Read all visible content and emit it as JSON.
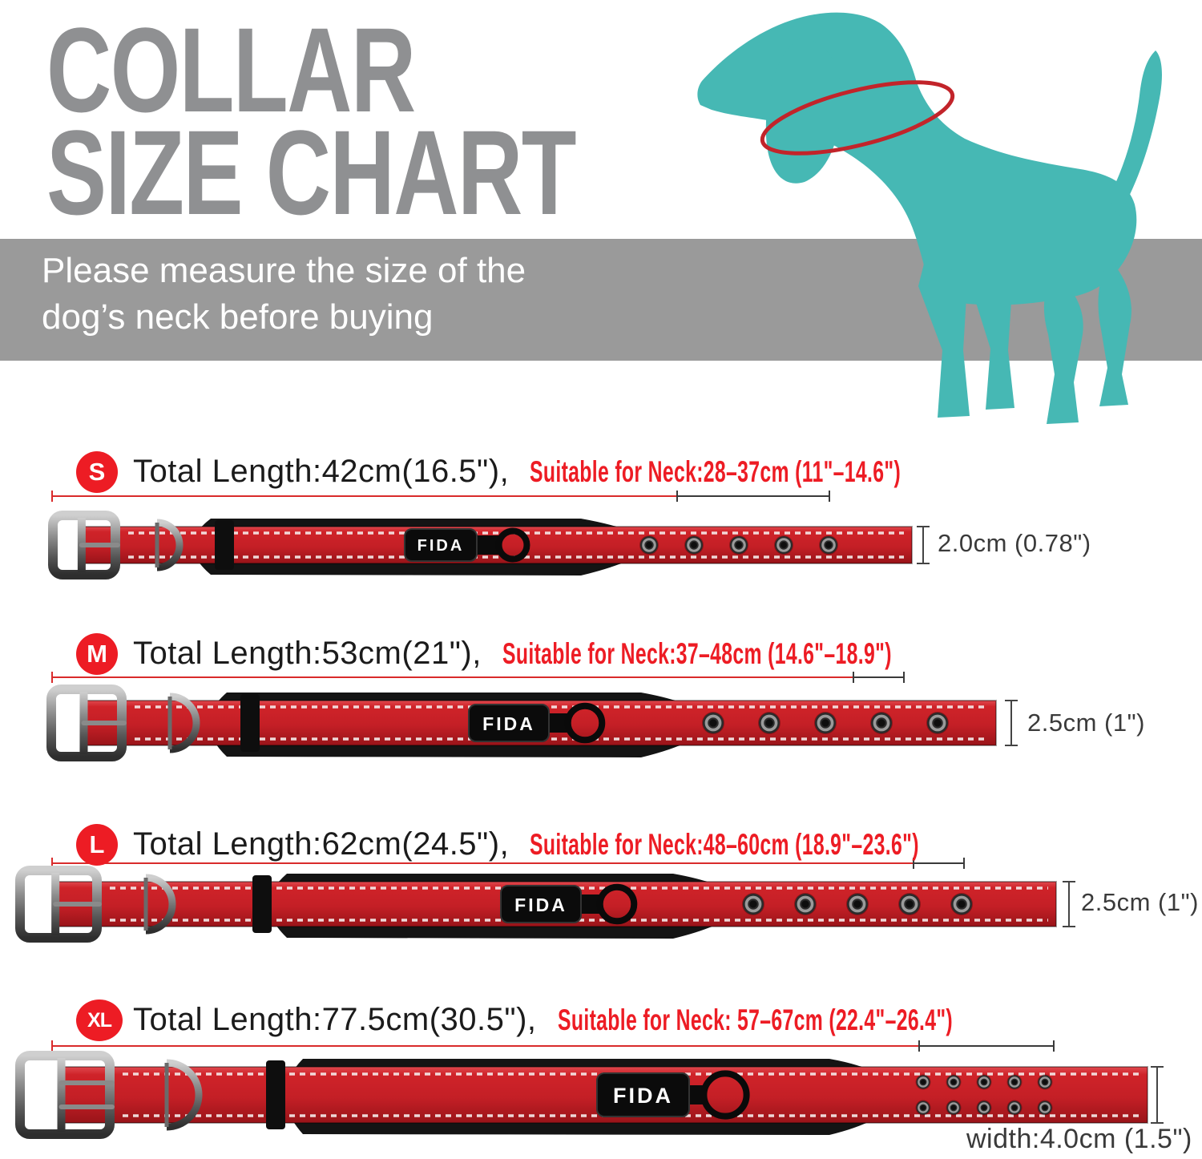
{
  "title": {
    "line1": "COLLAR",
    "line2": "SIZE CHART"
  },
  "banner": {
    "line1": "Please measure the size of the",
    "line2": "dog’s neck before buying"
  },
  "brand_label": "FIDA",
  "colors": {
    "accent_red": "#ed1c24",
    "collar_red": "#c62127",
    "dog_teal": "#46b8b4",
    "title_gray": "#8f9092",
    "banner_gray": "#9a9a9a"
  },
  "sizes": [
    {
      "label": "S",
      "total_length": "Total Length:42cm(16.5\"),",
      "neck_range": "Suitable for Neck:28–37cm (11\"–14.6\")",
      "width_label": "2.0cm (0.78\")"
    },
    {
      "label": "M",
      "total_length": "Total Length:53cm(21\"),",
      "neck_range": "Suitable for Neck:37–48cm (14.6\"–18.9\")",
      "width_label": "2.5cm (1\")"
    },
    {
      "label": "L",
      "total_length": "Total Length:62cm(24.5\"),",
      "neck_range": "Suitable for Neck:48–60cm (18.9\"–23.6\")",
      "width_label": "2.5cm (1\")"
    },
    {
      "label": "XL",
      "total_length": "Total Length:77.5cm(30.5\"),",
      "neck_range": "Suitable for Neck: 57–67cm (22.4\"–26.4\")",
      "width_label": "width:4.0cm (1.5\")"
    }
  ]
}
